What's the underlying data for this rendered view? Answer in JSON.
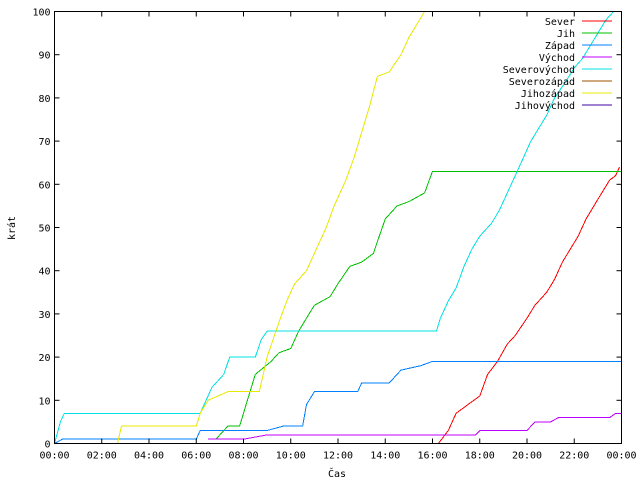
{
  "chart_data": {
    "type": "line",
    "title": "",
    "xlabel": "Čas",
    "ylabel": "krát",
    "ylim": [
      0,
      100
    ],
    "xlim": [
      "00:00",
      "24:00"
    ],
    "yticks": [
      0,
      10,
      20,
      30,
      40,
      50,
      60,
      70,
      80,
      90,
      100
    ],
    "xticks": [
      "00:00",
      "02:00",
      "04:00",
      "06:00",
      "08:00",
      "10:00",
      "12:00",
      "14:00",
      "16:00",
      "18:00",
      "20:00",
      "22:00",
      "00:00"
    ],
    "grid": false,
    "legend_position": "top-right",
    "series": [
      {
        "name": "Sever",
        "color": "#ff0000",
        "points": [
          [
            "06:45",
            0
          ],
          [
            "16:15",
            0
          ],
          [
            "16:40",
            3
          ],
          [
            "17:00",
            7
          ],
          [
            "17:30",
            9
          ],
          [
            "18:00",
            11
          ],
          [
            "18:20",
            16
          ],
          [
            "18:45",
            19
          ],
          [
            "19:10",
            23
          ],
          [
            "19:30",
            25
          ],
          [
            "20:00",
            29
          ],
          [
            "20:20",
            32
          ],
          [
            "20:50",
            35
          ],
          [
            "21:10",
            38
          ],
          [
            "21:30",
            42
          ],
          [
            "21:50",
            45
          ],
          [
            "22:10",
            48
          ],
          [
            "22:30",
            52
          ],
          [
            "22:50",
            55
          ],
          [
            "23:10",
            58
          ],
          [
            "23:30",
            61
          ],
          [
            "23:45",
            62
          ],
          [
            "23:55",
            64
          ]
        ]
      },
      {
        "name": "Jih",
        "color": "#00c000",
        "points": [
          [
            "06:50",
            1
          ],
          [
            "07:20",
            4
          ],
          [
            "07:50",
            4
          ],
          [
            "08:10",
            10
          ],
          [
            "08:30",
            16
          ],
          [
            "09:10",
            19
          ],
          [
            "09:30",
            21
          ],
          [
            "10:00",
            22
          ],
          [
            "10:20",
            26
          ],
          [
            "10:40",
            29
          ],
          [
            "11:00",
            32
          ],
          [
            "11:40",
            34
          ],
          [
            "12:00",
            37
          ],
          [
            "12:30",
            41
          ],
          [
            "13:00",
            42
          ],
          [
            "13:30",
            44
          ],
          [
            "13:45",
            48
          ],
          [
            "14:00",
            52
          ],
          [
            "14:30",
            55
          ],
          [
            "15:00",
            56
          ],
          [
            "15:40",
            58
          ],
          [
            "16:00",
            63
          ],
          [
            "24:00",
            63
          ]
        ]
      },
      {
        "name": "Západ",
        "color": "#0080ff",
        "points": [
          [
            "00:00",
            0
          ],
          [
            "00:20",
            1
          ],
          [
            "06:00",
            1
          ],
          [
            "06:10",
            3
          ],
          [
            "09:00",
            3
          ],
          [
            "09:40",
            4
          ],
          [
            "10:30",
            4
          ],
          [
            "10:40",
            9
          ],
          [
            "11:00",
            12
          ],
          [
            "12:50",
            12
          ],
          [
            "13:00",
            14
          ],
          [
            "14:10",
            14
          ],
          [
            "14:40",
            17
          ],
          [
            "15:30",
            18
          ],
          [
            "16:00",
            19
          ],
          [
            "24:00",
            19
          ]
        ]
      },
      {
        "name": "Východ",
        "color": "#c000ff",
        "points": [
          [
            "06:30",
            1
          ],
          [
            "08:00",
            1
          ],
          [
            "09:00",
            2
          ],
          [
            "17:50",
            2
          ],
          [
            "18:00",
            3
          ],
          [
            "20:00",
            3
          ],
          [
            "20:20",
            5
          ],
          [
            "21:00",
            5
          ],
          [
            "21:20",
            6
          ],
          [
            "23:30",
            6
          ],
          [
            "23:45",
            7
          ],
          [
            "24:00",
            7
          ]
        ]
      },
      {
        "name": "Severovýchod",
        "color": "#00e0e0",
        "points": [
          [
            "00:00",
            0
          ],
          [
            "00:15",
            5
          ],
          [
            "00:25",
            7
          ],
          [
            "06:10",
            7
          ],
          [
            "06:25",
            10
          ],
          [
            "06:40",
            13
          ],
          [
            "07:10",
            16
          ],
          [
            "07:25",
            20
          ],
          [
            "08:30",
            20
          ],
          [
            "08:45",
            24
          ],
          [
            "09:00",
            26
          ],
          [
            "16:10",
            26
          ],
          [
            "16:20",
            29
          ],
          [
            "16:40",
            33
          ],
          [
            "17:00",
            36
          ],
          [
            "17:20",
            41
          ],
          [
            "17:40",
            45
          ],
          [
            "18:00",
            48
          ],
          [
            "18:30",
            51
          ],
          [
            "18:50",
            54
          ],
          [
            "19:10",
            58
          ],
          [
            "19:30",
            62
          ],
          [
            "19:50",
            66
          ],
          [
            "20:10",
            70
          ],
          [
            "20:30",
            73
          ],
          [
            "20:50",
            76
          ],
          [
            "21:10",
            80
          ],
          [
            "21:40",
            84
          ],
          [
            "22:00",
            87
          ],
          [
            "22:20",
            89
          ],
          [
            "22:40",
            92
          ],
          [
            "23:00",
            95
          ],
          [
            "23:20",
            98
          ],
          [
            "23:40",
            100
          ]
        ]
      },
      {
        "name": "Severozápad",
        "color": "#a05000",
        "points": []
      },
      {
        "name": "Jihozápad",
        "color": "#e8e800",
        "points": [
          [
            "02:40",
            0
          ],
          [
            "02:50",
            4
          ],
          [
            "06:00",
            4
          ],
          [
            "06:10",
            7
          ],
          [
            "06:30",
            10
          ],
          [
            "07:20",
            12
          ],
          [
            "08:40",
            12
          ],
          [
            "09:00",
            20
          ],
          [
            "09:30",
            28
          ],
          [
            "09:50",
            33
          ],
          [
            "10:10",
            37
          ],
          [
            "10:40",
            40
          ],
          [
            "11:00",
            44
          ],
          [
            "11:30",
            50
          ],
          [
            "11:50",
            55
          ],
          [
            "12:20",
            61
          ],
          [
            "12:40",
            66
          ],
          [
            "13:00",
            72
          ],
          [
            "13:20",
            78
          ],
          [
            "13:40",
            85
          ],
          [
            "14:10",
            86
          ],
          [
            "14:40",
            90
          ],
          [
            "15:00",
            94
          ],
          [
            "15:20",
            97
          ],
          [
            "15:40",
            100
          ]
        ]
      },
      {
        "name": "Jihovýchod",
        "color": "#4000a0",
        "points": []
      }
    ]
  }
}
